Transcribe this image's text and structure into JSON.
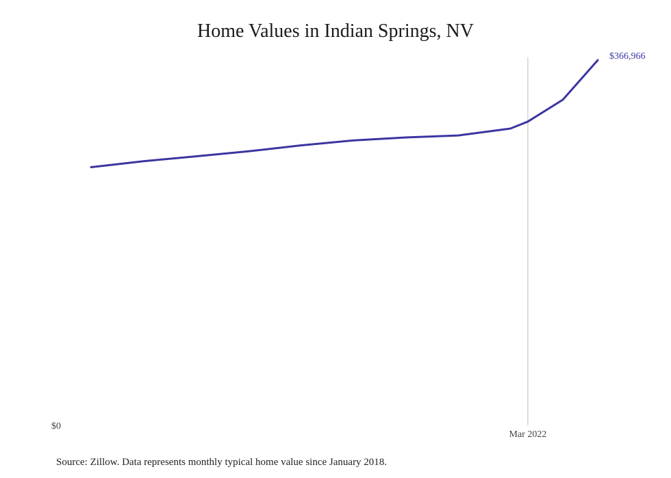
{
  "chart_data": {
    "type": "line",
    "title": "Home Values in Indian Springs, NV",
    "source_note": "Source: Zillow. Data represents monthly typical home value since January 2018.",
    "x_start": "2018-01",
    "x_end": "2022-11",
    "x": [
      "2018-01",
      "2018-07",
      "2019-01",
      "2019-07",
      "2020-01",
      "2020-07",
      "2021-01",
      "2021-07",
      "2022-01",
      "2022-03",
      "2022-07",
      "2022-11"
    ],
    "series": [
      {
        "values": [
          259000,
          265000,
          270000,
          275000,
          281000,
          286000,
          289000,
          291000,
          298000,
          305000,
          327000,
          366966
        ],
        "color": "#3b35a0"
      }
    ],
    "ylim": [
      0,
      366966
    ],
    "y_tick_labels": [
      "$0"
    ],
    "end_label": "$366,966",
    "x_tick_marker": {
      "date": "2022-03",
      "label": "Mar 2022"
    }
  }
}
